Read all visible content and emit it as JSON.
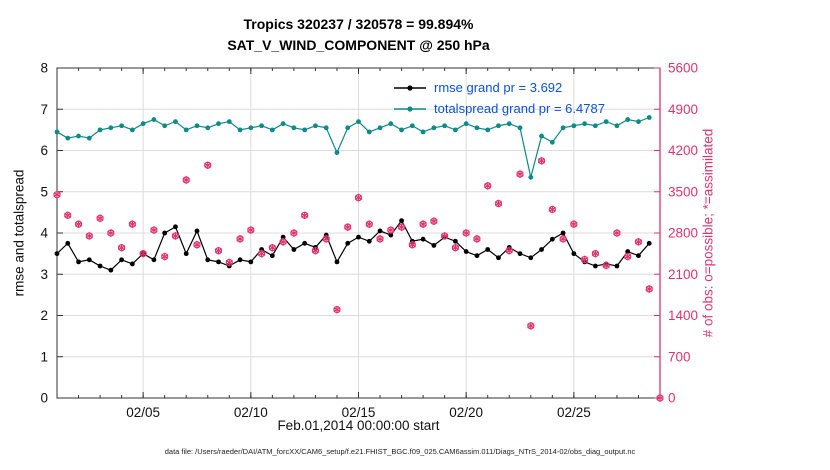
{
  "caption": {
    "data_file": "data file: /Users/raeder/DAI/ATM_forcXX/CAM6_setup/f.e21.FHIST_BGC.f09_025.CAM6assim.011/Diags_NTrS_2014-02/obs_diag_output.nc"
  },
  "chart_data": {
    "type": "line",
    "title_line1": "Tropics 320237 / 320578 = 99.894%",
    "title_line2": "SAT_V_WIND_COMPONENT @ 250 hPa",
    "xlabel": "Feb.01,2014 00:00:00 start",
    "ylabel_left": "rmse and totalspread",
    "ylabel_right": "# of obs: o=possible; *=assimilated",
    "xlim": [
      1,
      29
    ],
    "ylim_left": [
      0,
      8
    ],
    "ylim_right": [
      0,
      5600
    ],
    "grid": true,
    "legend_position": "top-center-inside",
    "legend_text_color": "#0a50e0",
    "xticks": [
      {
        "v": 5,
        "label": "02/05"
      },
      {
        "v": 10,
        "label": "02/10"
      },
      {
        "v": 15,
        "label": "02/15"
      },
      {
        "v": 20,
        "label": "02/20"
      },
      {
        "v": 25,
        "label": "02/25"
      }
    ],
    "yticks_left": [
      0,
      1,
      2,
      3,
      4,
      5,
      6,
      7,
      8
    ],
    "yticks_right": [
      0,
      700,
      1400,
      2100,
      2800,
      3500,
      4200,
      4900,
      5600
    ],
    "x": [
      1,
      1.5,
      2,
      2.5,
      3,
      3.5,
      4,
      4.5,
      5,
      5.5,
      6,
      6.5,
      7,
      7.5,
      8,
      8.5,
      9,
      9.5,
      10,
      10.5,
      11,
      11.5,
      12,
      12.5,
      13,
      13.5,
      14,
      14.5,
      15,
      15.5,
      16,
      16.5,
      17,
      17.5,
      18,
      18.5,
      19,
      19.5,
      20,
      20.5,
      21,
      21.5,
      22,
      22.5,
      23,
      23.5,
      24,
      24.5,
      25,
      25.5,
      26,
      26.5,
      27,
      27.5,
      28,
      28.5
    ],
    "series": [
      {
        "name": "rmse grand pr = 3.692",
        "color": "#000000",
        "marker": "filled-circle",
        "values": [
          3.5,
          3.75,
          3.3,
          3.35,
          3.2,
          3.1,
          3.35,
          3.25,
          3.5,
          3.35,
          4.0,
          4.15,
          3.5,
          4.05,
          3.35,
          3.3,
          3.2,
          3.35,
          3.3,
          3.6,
          3.45,
          3.9,
          3.6,
          3.75,
          3.65,
          3.95,
          3.3,
          3.75,
          3.9,
          3.8,
          4.05,
          3.95,
          4.3,
          3.8,
          3.85,
          3.7,
          3.9,
          3.8,
          3.55,
          3.45,
          3.6,
          3.4,
          3.65,
          3.5,
          3.4,
          3.6,
          3.85,
          4.0,
          3.5,
          3.3,
          3.2,
          3.25,
          3.2,
          3.55,
          3.45,
          3.75
        ]
      },
      {
        "name": "totalspread grand pr = 6.4787",
        "color": "#0d8a8a",
        "marker": "filled-circle",
        "values": [
          6.45,
          6.3,
          6.35,
          6.3,
          6.5,
          6.55,
          6.6,
          6.5,
          6.65,
          6.75,
          6.6,
          6.7,
          6.5,
          6.6,
          6.55,
          6.65,
          6.7,
          6.5,
          6.55,
          6.6,
          6.5,
          6.65,
          6.55,
          6.5,
          6.6,
          6.55,
          5.95,
          6.55,
          6.7,
          6.45,
          6.55,
          6.65,
          6.5,
          6.6,
          6.45,
          6.55,
          6.6,
          6.5,
          6.65,
          6.55,
          6.5,
          6.6,
          6.65,
          6.55,
          5.35,
          6.35,
          6.2,
          6.55,
          6.6,
          6.65,
          6.6,
          6.7,
          6.6,
          6.75,
          6.7,
          6.8
        ]
      }
    ],
    "obs": {
      "name": "# of obs (o=possible, *=assimilated)",
      "color": "#e0336e",
      "marker": "asterisk-and-circle",
      "axis": "right",
      "x": [
        1,
        1.5,
        2,
        2.5,
        3,
        3.5,
        4,
        4.5,
        5,
        5.5,
        6,
        6.5,
        7,
        7.5,
        8,
        8.5,
        9,
        9.5,
        10,
        10.5,
        11,
        11.5,
        12,
        12.5,
        13,
        13.5,
        14,
        14.5,
        15,
        15.5,
        16,
        16.5,
        17,
        17.5,
        18,
        18.5,
        19,
        19.5,
        20,
        20.5,
        21,
        21.5,
        22,
        22.5,
        23,
        23.5,
        24,
        24.5,
        25,
        25.5,
        26,
        26.5,
        27,
        27.5,
        28,
        28.5,
        29
      ],
      "values": [
        3450,
        3100,
        2950,
        2750,
        3050,
        2800,
        2550,
        2950,
        2450,
        2850,
        2400,
        2750,
        3700,
        2600,
        3950,
        2500,
        2300,
        2700,
        2850,
        2450,
        2550,
        2650,
        2800,
        3100,
        2500,
        2700,
        1500,
        2900,
        3400,
        2950,
        2700,
        2850,
        2900,
        2600,
        2950,
        3000,
        2750,
        2550,
        2800,
        2700,
        3600,
        3300,
        2500,
        3800,
        1225,
        4025,
        3200,
        2700,
        2950,
        2350,
        2450,
        2250,
        2800,
        2400,
        2650,
        1850,
        0
      ]
    }
  }
}
